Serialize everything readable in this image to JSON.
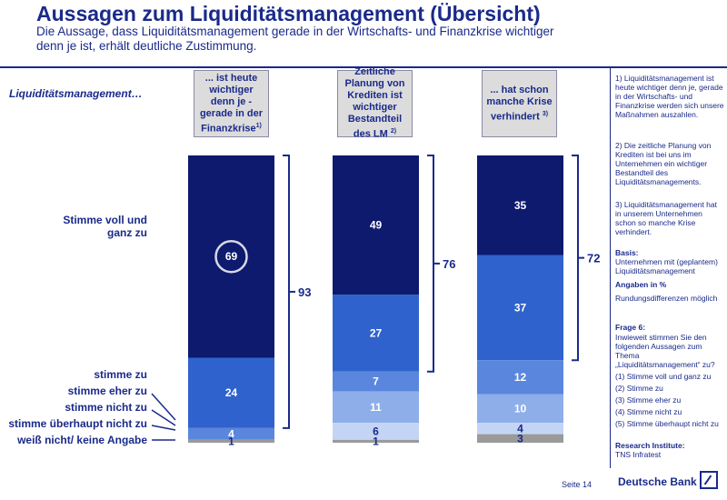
{
  "header": {
    "title": "Aussagen zum Liquiditätsmanagement (Übersicht)",
    "subtitle": "Die Aussage, dass Liquiditätsmanagement gerade in der Wirtschafts- und Finanzkrise wichtiger denn je ist, erhält deutliche Zustimmung."
  },
  "row_heading": "Liquiditätsmanagement…",
  "columns": [
    {
      "label": "... ist heute wichtiger denn je - gerade in der Finanzkrise",
      "note": "1)"
    },
    {
      "label": "Zeitliche Planung von Krediten ist wichtiger Bestandteil des LM",
      "note": "2)"
    },
    {
      "label": "... hat schon manche Krise verhindert",
      "note": "3)"
    }
  ],
  "categories_labels": {
    "c1": "Stimme voll und ganz zu",
    "c2": "stimme zu",
    "c3": "stimme eher zu",
    "c4": "stimme nicht zu",
    "c5": "stimme überhaupt nicht zu",
    "c6": "weiß nicht/ keine Angabe"
  },
  "chart_data": {
    "type": "bar",
    "stacked": true,
    "categories": [
      "... ist heute wichtiger denn je - gerade in der Finanzkrise",
      "Zeitliche Planung von Krediten ist wichtiger Bestandteil des LM",
      "... hat schon manche Krise verhindert"
    ],
    "series": [
      {
        "name": "Stimme voll und ganz zu",
        "values": [
          69,
          49,
          35
        ],
        "color": "#0d1a6e"
      },
      {
        "name": "stimme zu",
        "values": [
          24,
          27,
          37
        ],
        "color": "#2f62cc"
      },
      {
        "name": "stimme eher zu",
        "values": [
          4,
          7,
          12
        ],
        "color": "#5a86de"
      },
      {
        "name": "stimme nicht zu",
        "values": [
          0,
          11,
          10
        ],
        "color": "#8eaeea"
      },
      {
        "name": "stimme überhaupt nicht zu",
        "values": [
          0,
          6,
          4
        ],
        "color": "#c4d4f4"
      },
      {
        "name": "weiß nicht/ keine Angabe",
        "values": [
          1,
          1,
          3
        ],
        "color": "#9a9a9a"
      }
    ],
    "labels": [
      [
        "69",
        "24",
        "4",
        "",
        "",
        "1"
      ],
      [
        "49",
        "27",
        "7",
        "11",
        "6",
        "1"
      ],
      [
        "35",
        "37",
        "12",
        "10",
        "4",
        "3"
      ]
    ],
    "bracket_totals": [
      "93",
      "76",
      "72"
    ],
    "highlight": "69",
    "unit": "%"
  },
  "sidebar": {
    "note1": "1) Liquiditätsmanagement ist heute wichtiger denn je, gerade in der Wirtschafts- und Finanzkrise werden sich unsere Maßnahmen auszahlen.",
    "note2": "2) Die zeitliche Planung von Krediten ist bei uns im Unternehmen ein wichtiger Bestandteil des Liquiditätsmanagements.",
    "note3": "3) Liquiditätsmanagement hat in unserem Unternehmen schon so manche Krise verhindert.",
    "basis_label": "Basis:",
    "basis_text": "Unternehmen mit (geplantem) Liquiditätsmanagement",
    "unit_text": "Angaben in %",
    "rounding_text": "Rundungsdifferenzen möglich",
    "question_label": "Frage 6:",
    "question_text": "Inwieweit stimmen Sie den folgenden Aussagen zum Thema „Liquiditätsmanagement“ zu?",
    "options": [
      "(1) Stimme voll und ganz zu",
      "(2) Stimme zu",
      "(3) Stimme eher zu",
      "(4) Stimme nicht zu",
      "(5) Stimme überhaupt nicht zu"
    ],
    "institute_label": "Research Institute:",
    "institute_text": "TNS Infratest"
  },
  "footer": {
    "page": "Seite 14",
    "bank": "Deutsche Bank"
  }
}
